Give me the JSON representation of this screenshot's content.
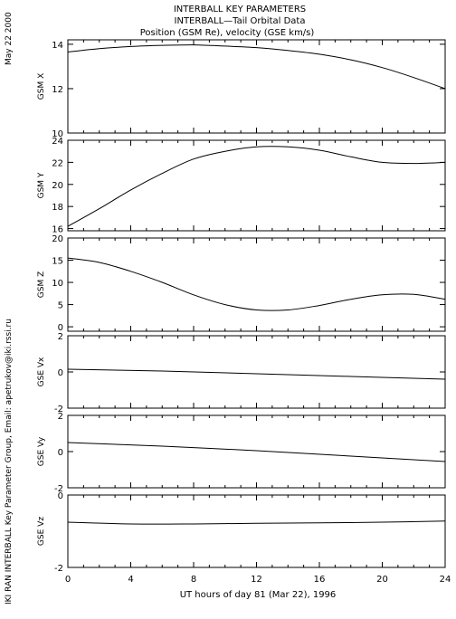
{
  "header": {
    "line1": "INTERBALL KEY PARAMETERS",
    "line2": "INTERBALL—Tail Orbital Data",
    "line3": "Position (GSM Re), velocity (GSE km/s)"
  },
  "side_text": {
    "date": "May 22 2000",
    "credit": "IKI RAN INTERBALL Key Parameter Group, Email: apetrukov@iki.rssi.ru"
  },
  "chart_data": [
    {
      "type": "line",
      "ylabel": "GSM X",
      "ylim": [
        10,
        14.2
      ],
      "yticks": [
        10,
        12,
        14
      ],
      "x": [
        0,
        2,
        4,
        6,
        8,
        10,
        12,
        14,
        16,
        18,
        20,
        22,
        24
      ],
      "series": [
        {
          "values": [
            13.65,
            13.8,
            13.9,
            13.95,
            13.97,
            13.92,
            13.85,
            13.72,
            13.55,
            13.3,
            12.95,
            12.5,
            12.0
          ]
        }
      ]
    },
    {
      "type": "line",
      "ylabel": "GSM Y",
      "ylim": [
        15.8,
        24
      ],
      "yticks": [
        16,
        18,
        20,
        22,
        24
      ],
      "x": [
        0,
        2,
        4,
        6,
        8,
        10,
        12,
        14,
        16,
        18,
        20,
        22,
        24
      ],
      "series": [
        {
          "values": [
            16.2,
            17.8,
            19.5,
            21.0,
            22.3,
            23.0,
            23.4,
            23.4,
            23.1,
            22.5,
            22.0,
            21.9,
            22.0
          ]
        }
      ]
    },
    {
      "type": "line",
      "ylabel": "GSM Z",
      "ylim": [
        -1,
        20
      ],
      "yticks": [
        0,
        5,
        10,
        15,
        20
      ],
      "x": [
        0,
        2,
        4,
        6,
        8,
        10,
        12,
        14,
        16,
        18,
        20,
        22,
        24
      ],
      "series": [
        {
          "values": [
            15.5,
            14.5,
            12.5,
            10.0,
            7.2,
            5.0,
            3.8,
            3.8,
            4.8,
            6.2,
            7.2,
            7.3,
            6.2
          ]
        }
      ]
    },
    {
      "type": "line",
      "ylabel": "GSE Vx",
      "ylim": [
        -2,
        2
      ],
      "yticks": [
        -2,
        0,
        2
      ],
      "x": [
        0,
        6,
        12,
        18,
        24
      ],
      "series": [
        {
          "values": [
            0.15,
            0.05,
            -0.1,
            -0.25,
            -0.4
          ]
        }
      ]
    },
    {
      "type": "line",
      "ylabel": "GSE Vy",
      "ylim": [
        -2,
        2
      ],
      "yticks": [
        -2,
        0,
        2
      ],
      "x": [
        0,
        6,
        12,
        18,
        24
      ],
      "series": [
        {
          "values": [
            0.5,
            0.3,
            0.05,
            -0.25,
            -0.55
          ]
        }
      ]
    },
    {
      "type": "line",
      "ylabel": "GSE Vz",
      "ylim": [
        -2,
        0
      ],
      "yticks": [
        -2,
        0
      ],
      "x": [
        0,
        4,
        8,
        12,
        16,
        20,
        24
      ],
      "series": [
        {
          "values": [
            -0.75,
            -0.8,
            -0.8,
            -0.78,
            -0.77,
            -0.75,
            -0.72
          ]
        }
      ]
    }
  ],
  "x_axis": {
    "tick_labels": [
      "0",
      "4",
      "8",
      "12",
      "16",
      "20",
      "24"
    ],
    "xlabel": "UT hours of day  81 (Mar 22), 1996",
    "xlim": [
      0,
      24
    ]
  }
}
